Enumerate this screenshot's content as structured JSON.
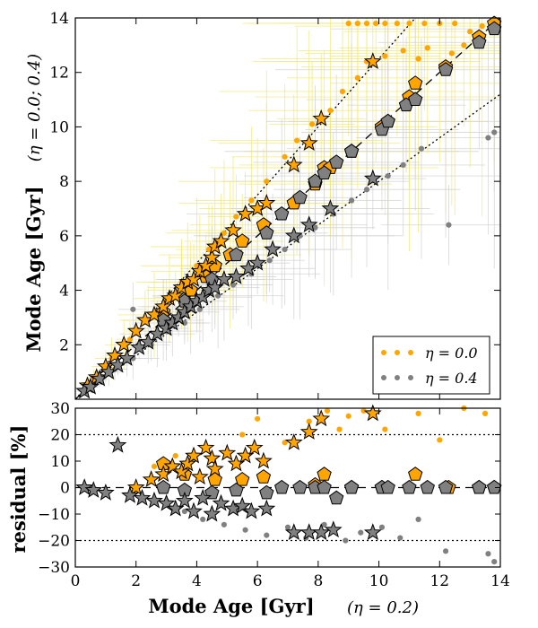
{
  "chart_data": [
    {
      "id": "top",
      "type": "scatter",
      "xlabel": "Mode Age [Gyr]",
      "x_annotation": "(η = 0.2)",
      "ylabel": "Mode Age [Gyr]",
      "y_annotation": "(η = 0.0; 0.4)",
      "xlim": [
        0,
        14
      ],
      "ylim": [
        0,
        14
      ],
      "yticks": [
        "2",
        "4",
        "6",
        "8",
        "10",
        "12",
        "14"
      ],
      "reference_lines": [
        {
          "style": "dashed",
          "slope": 1.0
        },
        {
          "style": "dotted",
          "slope": 1.25
        },
        {
          "style": "dotted",
          "slope": 0.8
        }
      ],
      "legend": {
        "placement": "lower-right",
        "entries": [
          {
            "label": "η = 0.0",
            "color": "#ffa500"
          },
          {
            "label": "η = 0.4",
            "color": "#808080"
          }
        ]
      },
      "series": [
        {
          "name": "η = 0.0 stars",
          "marker": "star",
          "color": "#ffa500",
          "x": [
            0.4,
            0.7,
            1.0,
            1.3,
            1.6,
            2.0,
            2.3,
            2.6,
            2.9,
            3.1,
            3.3,
            3.5,
            3.7,
            3.9,
            4.1,
            4.3,
            4.5,
            4.6,
            4.8,
            5.2,
            5.6,
            6.0,
            6.3,
            7.2,
            7.7,
            8.1,
            9.8
          ],
          "y": [
            0.5,
            0.8,
            1.2,
            1.6,
            2.0,
            2.5,
            2.9,
            3.1,
            3.4,
            3.7,
            3.8,
            4.1,
            4.3,
            4.4,
            4.7,
            4.9,
            5.2,
            5.6,
            5.8,
            6.2,
            6.8,
            7.0,
            7.2,
            8.6,
            9.4,
            10.3,
            12.4
          ]
        },
        {
          "name": "η = 0.4 stars",
          "marker": "star",
          "color": "#808080",
          "x": [
            0.3,
            0.5,
            0.8,
            1.1,
            1.4,
            1.7,
            2.1,
            2.4,
            2.7,
            3.0,
            3.2,
            3.4,
            3.6,
            3.8,
            4.0,
            4.2,
            4.4,
            4.6,
            4.9,
            5.3,
            5.7,
            6.0,
            6.5,
            7.2,
            7.7,
            8.4,
            9.8
          ],
          "y": [
            0.3,
            0.45,
            0.75,
            1.0,
            1.25,
            1.5,
            1.9,
            2.1,
            2.4,
            2.6,
            2.8,
            3.0,
            3.2,
            3.4,
            3.6,
            3.75,
            4.0,
            4.1,
            4.4,
            4.5,
            4.8,
            5.0,
            5.5,
            6.0,
            6.4,
            7.0,
            8.1
          ]
        },
        {
          "name": "η = 0.0 pentagons",
          "marker": "pentagon",
          "color": "#ffa500",
          "x": [
            2.9,
            3.8,
            4.3,
            4.6,
            5.1,
            5.5,
            6.2,
            7.2,
            7.9,
            8.2,
            8.4,
            9.1,
            10.1,
            10.3,
            11.0,
            11.2,
            12.2,
            13.3,
            13.8
          ],
          "y": [
            3.2,
            4.0,
            4.5,
            4.9,
            5.3,
            5.8,
            6.4,
            7.2,
            7.9,
            8.5,
            8.5,
            9.1,
            10.0,
            10.2,
            11.1,
            11.6,
            12.2,
            13.3,
            13.8
          ]
        },
        {
          "name": "η = 0.4 pentagons",
          "marker": "pentagon",
          "color": "#808080",
          "x": [
            2.9,
            3.6,
            4.5,
            5.3,
            6.3,
            6.8,
            7.4,
            7.9,
            8.2,
            8.6,
            9.1,
            10.1,
            10.3,
            10.9,
            11.2,
            12.2,
            13.3,
            13.8
          ],
          "y": [
            2.9,
            3.6,
            4.4,
            5.3,
            6.1,
            6.8,
            7.4,
            8.0,
            8.3,
            8.7,
            9.1,
            9.9,
            10.2,
            10.8,
            11.0,
            12.1,
            13.1,
            13.6
          ]
        },
        {
          "name": "η = 0.0 dots",
          "marker": "dot",
          "color": "#ffa500",
          "x": [
            0.6,
            1.2,
            1.8,
            2.4,
            3.0,
            3.5,
            4.0,
            4.4,
            4.9,
            5.3,
            5.8,
            6.3,
            6.9,
            7.3,
            7.8,
            8.4,
            8.8,
            9.3,
            9.6,
            10.2,
            10.8,
            11.3,
            11.6,
            12.4,
            12.8,
            13.0,
            13.4,
            9.0,
            9.3,
            9.6,
            9.9,
            10.2,
            10.6,
            11.0,
            11.5,
            12.0,
            12.5
          ],
          "y": [
            0.8,
            1.5,
            2.2,
            2.9,
            3.6,
            4.3,
            4.9,
            5.5,
            6.1,
            6.7,
            7.3,
            8.0,
            8.9,
            9.5,
            10.1,
            10.6,
            11.3,
            11.8,
            12.4,
            12.6,
            12.8,
            12.5,
            12.9,
            12.7,
            13.0,
            13.5,
            13.7,
            13.8,
            13.8,
            13.8,
            13.8,
            13.8,
            13.8,
            13.8,
            13.8,
            13.8,
            13.8
          ]
        },
        {
          "name": "η = 0.4 dots",
          "marker": "dot",
          "color": "#808080",
          "x": [
            0.8,
            1.3,
            1.9,
            2.5,
            3.0,
            3.6,
            4.1,
            4.7,
            5.2,
            5.8,
            6.4,
            6.9,
            7.4,
            7.9,
            8.5,
            9.1,
            9.6,
            10.3,
            10.8,
            11.4,
            12.3,
            13.6,
            13.8,
            1.9
          ],
          "y": [
            0.7,
            1.1,
            1.5,
            2.0,
            2.5,
            2.8,
            3.3,
            3.8,
            4.2,
            4.6,
            5.1,
            5.5,
            6.0,
            6.3,
            6.8,
            7.3,
            7.7,
            8.2,
            8.6,
            9.2,
            6.4,
            9.6,
            9.8,
            3.3
          ]
        }
      ]
    },
    {
      "id": "residual",
      "type": "scatter",
      "xlabel": "Mode Age [Gyr]",
      "ylabel": "residual [%]",
      "xlim": [
        0,
        14
      ],
      "ylim": [
        -30,
        30
      ],
      "xticks": [
        "0",
        "2",
        "4",
        "6",
        "8",
        "10",
        "12",
        "14"
      ],
      "yticks": [
        "−30",
        "−20",
        "−10",
        "0",
        "10",
        "20",
        "30"
      ],
      "reference_lines": [
        {
          "style": "dashed",
          "y": 0
        },
        {
          "style": "dotted",
          "y": 20
        },
        {
          "style": "dotted",
          "y": -20
        }
      ],
      "series": [
        {
          "name": "η = 0.0 stars",
          "marker": "star",
          "color": "#ffa500",
          "x": [
            2.0,
            2.5,
            2.9,
            3.2,
            3.5,
            3.7,
            3.9,
            4.1,
            4.3,
            4.5,
            4.6,
            5.0,
            5.3,
            5.6,
            5.9,
            6.2,
            7.2,
            7.7,
            8.1,
            9.8
          ],
          "y": [
            0,
            3,
            5,
            8,
            6,
            9,
            12,
            4,
            15,
            11,
            7,
            13,
            9,
            12,
            15,
            10,
            17,
            21,
            26,
            28
          ]
        },
        {
          "name": "η = 0.4 stars",
          "marker": "star",
          "color": "#808080",
          "x": [
            0.3,
            0.6,
            1.0,
            1.4,
            1.8,
            2.2,
            2.6,
            3.0,
            3.3,
            3.6,
            3.9,
            4.2,
            4.5,
            4.8,
            5.2,
            5.5,
            5.8,
            6.3,
            7.2,
            7.7,
            8.1,
            8.5,
            9.8
          ],
          "y": [
            0,
            -1,
            -2,
            16,
            -3,
            -4,
            -5,
            -6,
            -8,
            -5,
            -9,
            -4,
            -10,
            -6,
            -8,
            -7,
            -9,
            -8,
            -17,
            -17,
            -17,
            -16,
            -17
          ]
        },
        {
          "name": "η = 0.0 pentagons",
          "marker": "pentagon",
          "color": "#ffa500",
          "x": [
            2.9,
            3.6,
            4.6,
            5.5,
            6.2,
            7.9,
            8.2,
            9.1,
            10.1,
            11.2,
            12.3,
            13.3,
            13.8
          ],
          "y": [
            9,
            5,
            3,
            3,
            4,
            1,
            5,
            0,
            0,
            5,
            0,
            0,
            0
          ]
        },
        {
          "name": "η = 0.4 pentagons",
          "marker": "pentagon",
          "color": "#808080",
          "x": [
            2.9,
            3.6,
            4.5,
            5.3,
            6.3,
            6.8,
            7.4,
            7.9,
            8.2,
            8.6,
            9.1,
            10.1,
            10.3,
            11.0,
            11.6,
            12.2,
            13.3,
            13.8
          ],
          "y": [
            0,
            -1,
            -2,
            -1,
            -2,
            0,
            0,
            0,
            0,
            -4,
            0,
            0,
            0,
            0,
            0,
            0,
            0,
            0
          ]
        },
        {
          "name": "η = 0.0 dots",
          "marker": "dot",
          "color": "#ffa500",
          "x": [
            2.6,
            3.3,
            4.3,
            5.5,
            6.0,
            6.9,
            7.7,
            8.3,
            8.7,
            9.0,
            9.5,
            10.2,
            11.3,
            12.0,
            12.8,
            13.5
          ],
          "y": [
            8,
            12,
            15,
            20,
            26,
            17,
            25,
            29,
            22,
            27,
            29,
            22,
            28,
            18,
            30,
            28
          ]
        },
        {
          "name": "η = 0.4 dots",
          "marker": "dot",
          "color": "#808080",
          "x": [
            3.0,
            3.6,
            4.2,
            4.9,
            5.6,
            6.3,
            7.0,
            7.6,
            8.2,
            8.9,
            9.4,
            10.1,
            10.7,
            11.3,
            12.2,
            13.6,
            13.8
          ],
          "y": [
            -5,
            -9,
            -12,
            -14,
            -16,
            -18,
            -15,
            -19,
            -14,
            -20,
            -17,
            -15,
            -19,
            -12,
            -24,
            -25,
            -28
          ]
        }
      ]
    }
  ],
  "legend_labels": [
    "η = 0.0",
    "η = 0.4"
  ],
  "axis_text": {
    "top_ylabel": "Mode Age [Gyr]",
    "top_yannot": "(η = 0.0; 0.4)",
    "bottom_ylabel": "residual [%]",
    "xlabel": "Mode Age [Gyr]",
    "xannot": "(η = 0.2)"
  }
}
